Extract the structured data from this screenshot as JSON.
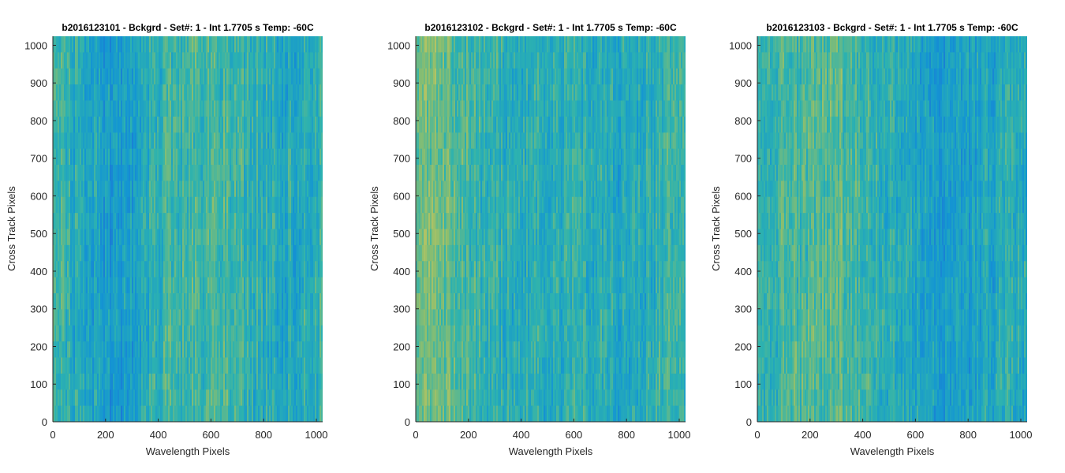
{
  "chart_data": [
    {
      "type": "heatmap",
      "title": "b2016123101 - Bckgrd - Set#: 1 - Int 1.7705 s Temp: -60C",
      "xlabel": "Wavelength Pixels",
      "ylabel": "Cross Track Pixels",
      "xlim": [
        0,
        1024
      ],
      "ylim": [
        0,
        1024
      ],
      "xticks": [
        0,
        200,
        400,
        600,
        800,
        1000
      ],
      "yticks": [
        0,
        100,
        200,
        300,
        400,
        500,
        600,
        700,
        800,
        900,
        1000
      ],
      "colormap": "parula",
      "column_profile": [
        0.55,
        0.45,
        0.35,
        0.3,
        0.33,
        0.45,
        0.52,
        0.55,
        0.56,
        0.55,
        0.5,
        0.45,
        0.4,
        0.45,
        0.5
      ]
    },
    {
      "type": "heatmap",
      "title": "b2016123102 - Bckgrd - Set#: 1 - Int 1.7705 s Temp: -60C",
      "xlabel": "Wavelength Pixels",
      "ylabel": "Cross Track Pixels",
      "xlim": [
        0,
        1024
      ],
      "ylim": [
        0,
        1024
      ],
      "xticks": [
        0,
        200,
        400,
        600,
        800,
        1000
      ],
      "yticks": [
        0,
        100,
        200,
        300,
        400,
        500,
        600,
        700,
        800,
        900,
        1000
      ],
      "colormap": "parula",
      "column_profile": [
        0.7,
        0.72,
        0.6,
        0.52,
        0.48,
        0.45,
        0.45,
        0.44,
        0.44,
        0.45,
        0.42,
        0.4,
        0.45,
        0.5,
        0.48
      ]
    },
    {
      "type": "heatmap",
      "title": "b2016123103 - Bckgrd - Set#: 1 - Int 1.7705 s Temp: -60C",
      "xlabel": "Wavelength Pixels",
      "ylabel": "Cross Track Pixels",
      "xlim": [
        0,
        1024
      ],
      "ylim": [
        0,
        1024
      ],
      "xticks": [
        0,
        200,
        400,
        600,
        800,
        1000
      ],
      "yticks": [
        0,
        100,
        200,
        300,
        400,
        500,
        600,
        700,
        800,
        900,
        1000
      ],
      "colormap": "parula",
      "column_profile": [
        0.5,
        0.52,
        0.55,
        0.6,
        0.62,
        0.58,
        0.5,
        0.45,
        0.4,
        0.35,
        0.3,
        0.32,
        0.38,
        0.42,
        0.45
      ]
    }
  ]
}
